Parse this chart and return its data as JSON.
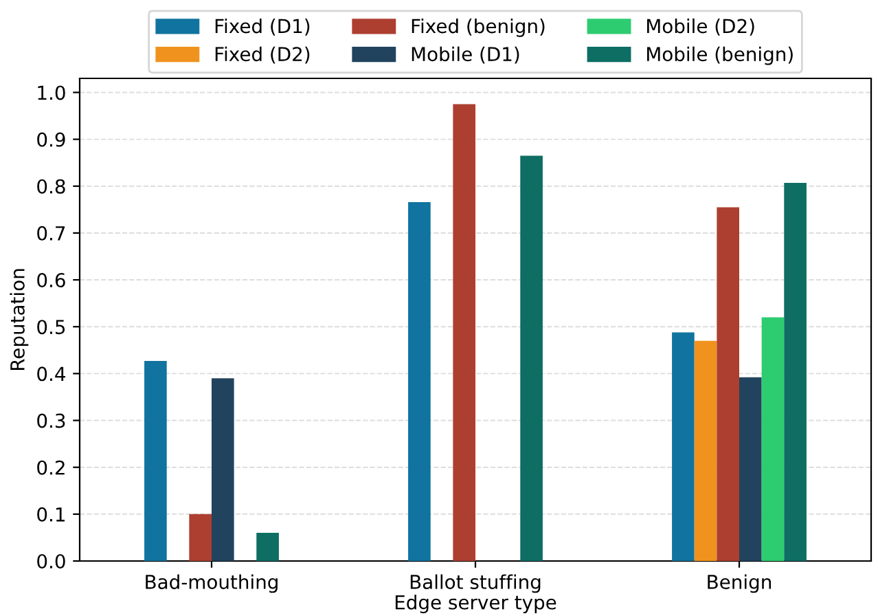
{
  "chart_data": {
    "type": "bar",
    "xlabel": "Edge server type",
    "ylabel": "Reputation",
    "categories": [
      "Bad-mouthing",
      "Ballot stuffing",
      "Benign"
    ],
    "series": [
      {
        "name": "Fixed (D1)",
        "color": "#11739f",
        "values": [
          0.427,
          0.766,
          0.488
        ]
      },
      {
        "name": "Fixed (D2)",
        "color": "#f0931e",
        "values": [
          null,
          null,
          0.47
        ]
      },
      {
        "name": "Fixed (benign)",
        "color": "#ad3f31",
        "values": [
          0.1,
          0.975,
          0.755
        ]
      },
      {
        "name": "Mobile (D1)",
        "color": "#21435e",
        "values": [
          0.39,
          null,
          0.392
        ]
      },
      {
        "name": "Mobile (D2)",
        "color": "#2ecc71",
        "values": [
          null,
          null,
          0.52
        ]
      },
      {
        "name": "Mobile (benign)",
        "color": "#0e6e63",
        "values": [
          0.06,
          0.865,
          0.807
        ]
      }
    ],
    "ylim": [
      0,
      1.03
    ],
    "yticks": [
      {
        "value": 0,
        "label": "0.0"
      },
      0.1,
      0.2,
      0.3,
      0.4,
      0.5,
      0.6,
      0.7,
      0.8,
      0.9,
      {
        "value": 1,
        "label": "1.0"
      }
    ],
    "grid": "y",
    "legend": "top"
  }
}
